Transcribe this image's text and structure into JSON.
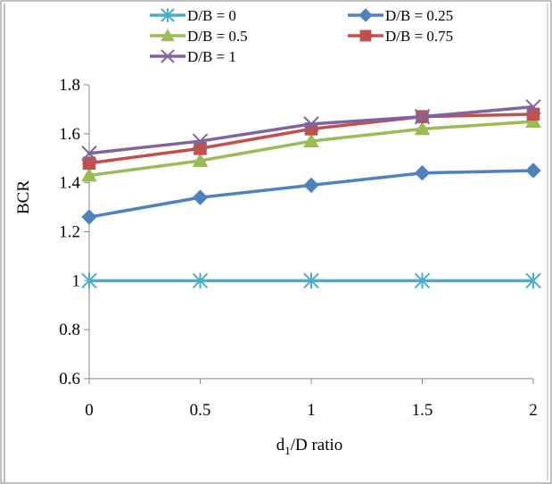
{
  "chart_data": {
    "type": "line",
    "title": "",
    "xlabel_main": "d",
    "xlabel_sub": "1",
    "xlabel_rest": "/D ratio",
    "ylabel": "BCR",
    "x": [
      0,
      0.5,
      1,
      1.5,
      2
    ],
    "x_tick_labels": [
      "0",
      "0.5",
      "1",
      "1.5",
      "2"
    ],
    "ylim": [
      0.6,
      1.8
    ],
    "y_ticks": [
      0.6,
      0.8,
      1,
      1.2,
      1.4,
      1.6,
      1.8
    ],
    "y_tick_labels": [
      "0.6",
      "0.8",
      "1",
      "1.2",
      "1.4",
      "1.6",
      "1.8"
    ],
    "grid": false,
    "legend_position": "top",
    "series": [
      {
        "name": "D/B = 0",
        "values": [
          1.0,
          1.0,
          1.0,
          1.0,
          1.0
        ],
        "color": "#4bacc6",
        "marker": "asterisk"
      },
      {
        "name": "D/B = 0.25",
        "values": [
          1.26,
          1.34,
          1.39,
          1.44,
          1.45
        ],
        "color": "#4f81bd",
        "marker": "diamond"
      },
      {
        "name": "D/B = 0.5",
        "values": [
          1.43,
          1.49,
          1.57,
          1.62,
          1.65
        ],
        "color": "#9bbb59",
        "marker": "triangle"
      },
      {
        "name": "D/B = 0.75",
        "values": [
          1.48,
          1.54,
          1.62,
          1.67,
          1.68
        ],
        "color": "#c0504d",
        "marker": "square"
      },
      {
        "name": "D/B = 1",
        "values": [
          1.52,
          1.57,
          1.64,
          1.67,
          1.71
        ],
        "color": "#8064a2",
        "marker": "x"
      }
    ]
  }
}
